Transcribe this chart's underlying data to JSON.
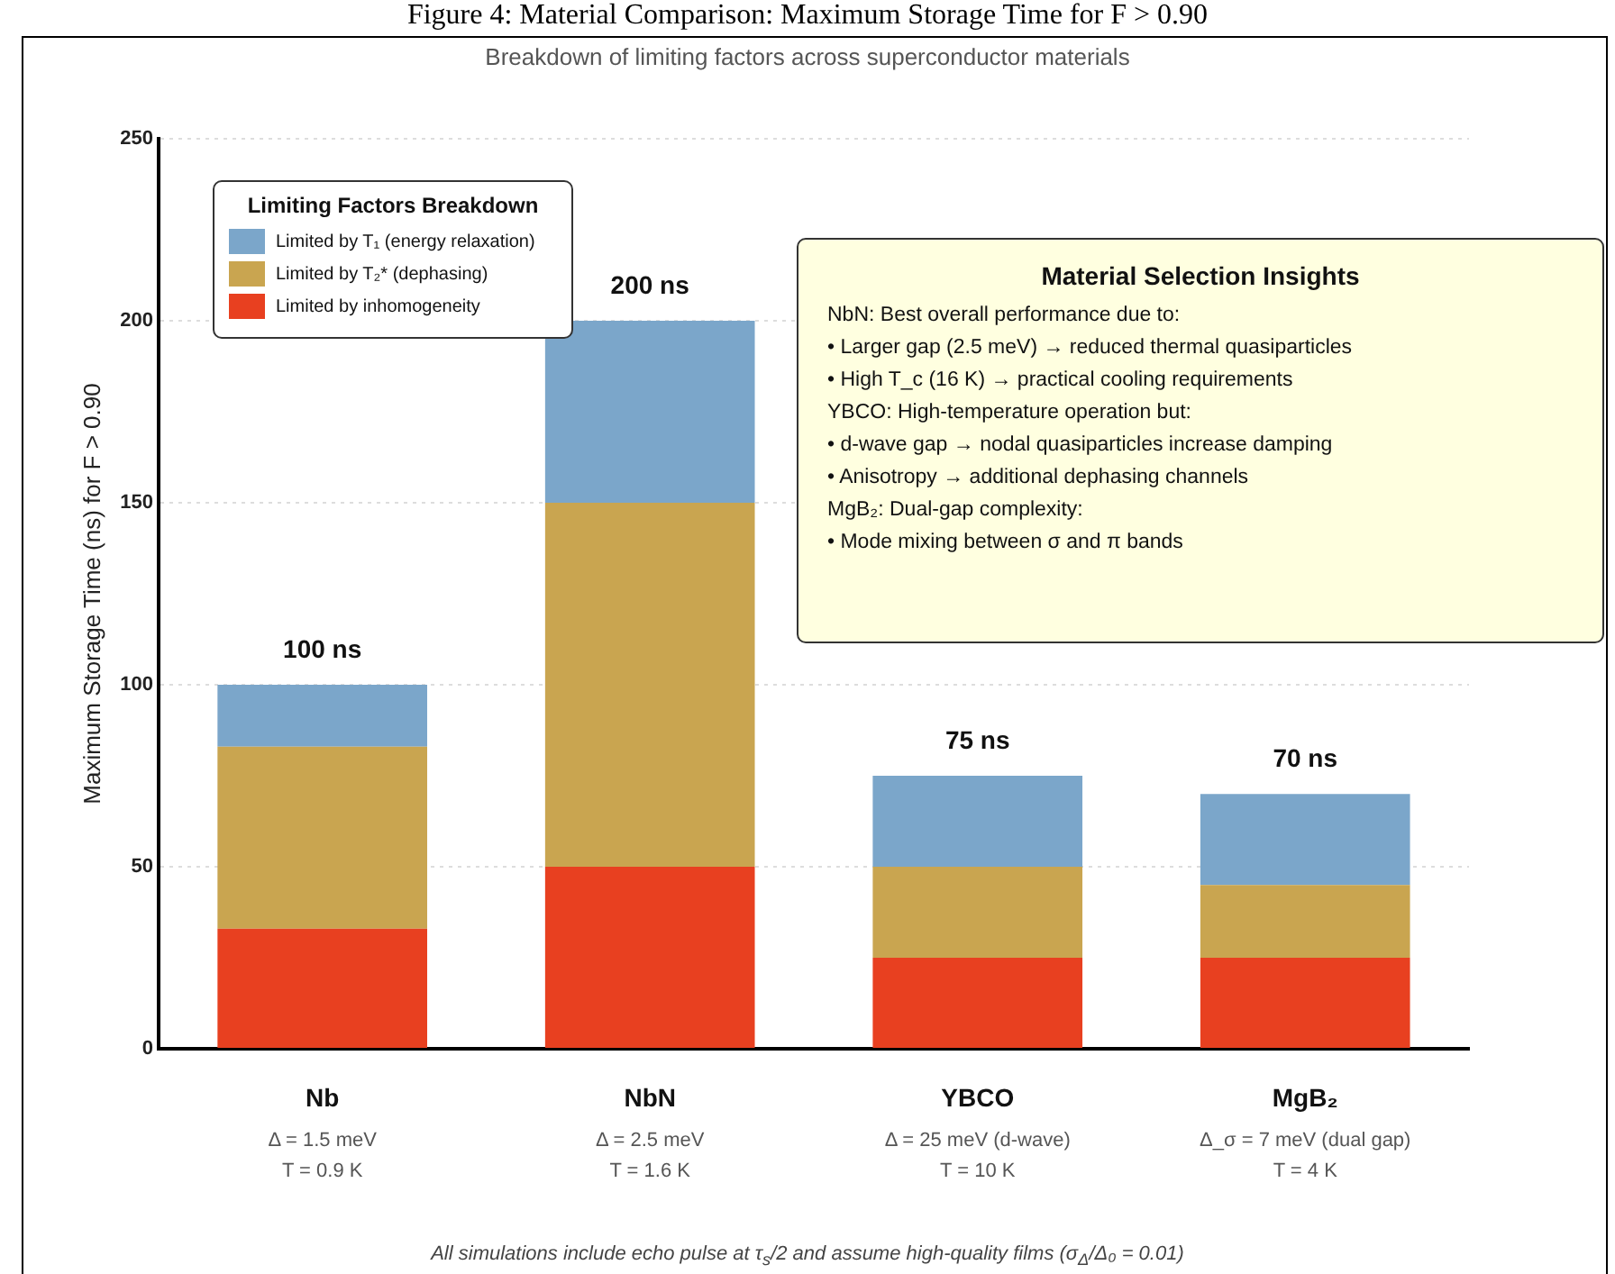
{
  "chart_data": {
    "type": "bar",
    "stacked": true,
    "title": "Figure 4: Material Comparison: Maximum Storage Time for F > 0.90",
    "subtitle": "Breakdown of limiting factors across superconductor materials",
    "ylabel": "Maximum Storage Time (ns) for F > 0.90",
    "legend_title": "Limiting Factors Breakdown",
    "categories": [
      "Nb\nΔ = 1.5 meV\nT = 0.9 K",
      "NbN\nΔ = 2.5 meV\nT = 1.6 K",
      "YBCO\nΔ = 25 meV (d-wave)\nT = 10 K",
      "MgB₂\nΔ_σ = 7 meV (dual gap)\nT = 4 K"
    ],
    "series": [
      {
        "name": "Limited by inhomogeneity",
        "color": "#e84020",
        "values": [
          33,
          50,
          25,
          25
        ]
      },
      {
        "name": "Limited by T₂* (dephasing)",
        "color": "#c9a550",
        "values": [
          50,
          100,
          25,
          20
        ]
      },
      {
        "name": "Limited by T₁ (energy relaxation)",
        "color": "#7ba6ca",
        "values": [
          17,
          50,
          25,
          25
        ]
      }
    ],
    "totals": [
      "100 ns",
      "200 ns",
      "75 ns",
      "70 ns"
    ],
    "ylim": [
      0,
      250
    ],
    "yticks": [
      0,
      50,
      100,
      150,
      200,
      250
    ],
    "grid": "y",
    "legend": "top left",
    "annotations": [
      "Material Selection Insights",
      "NbN: Best overall performance due to:",
      "• Larger gap (2.5 meV) → reduced thermal quasiparticles",
      "• High T_c (16 K) → practical cooling requirements",
      "YBCO: High-temperature operation but:",
      "• d-wave gap → nodal quasiparticles increase damping",
      "• Anisotropy → additional dephasing channels",
      "MgB₂: Dual-gap complexity:",
      "• Mode mixing between σ and π bands",
      "All simulations include echo pulse at τ$_{s}$/2 and assume high-quality films (σ$_{Δ}$/Δ₀ = 0.01)"
    ]
  }
}
